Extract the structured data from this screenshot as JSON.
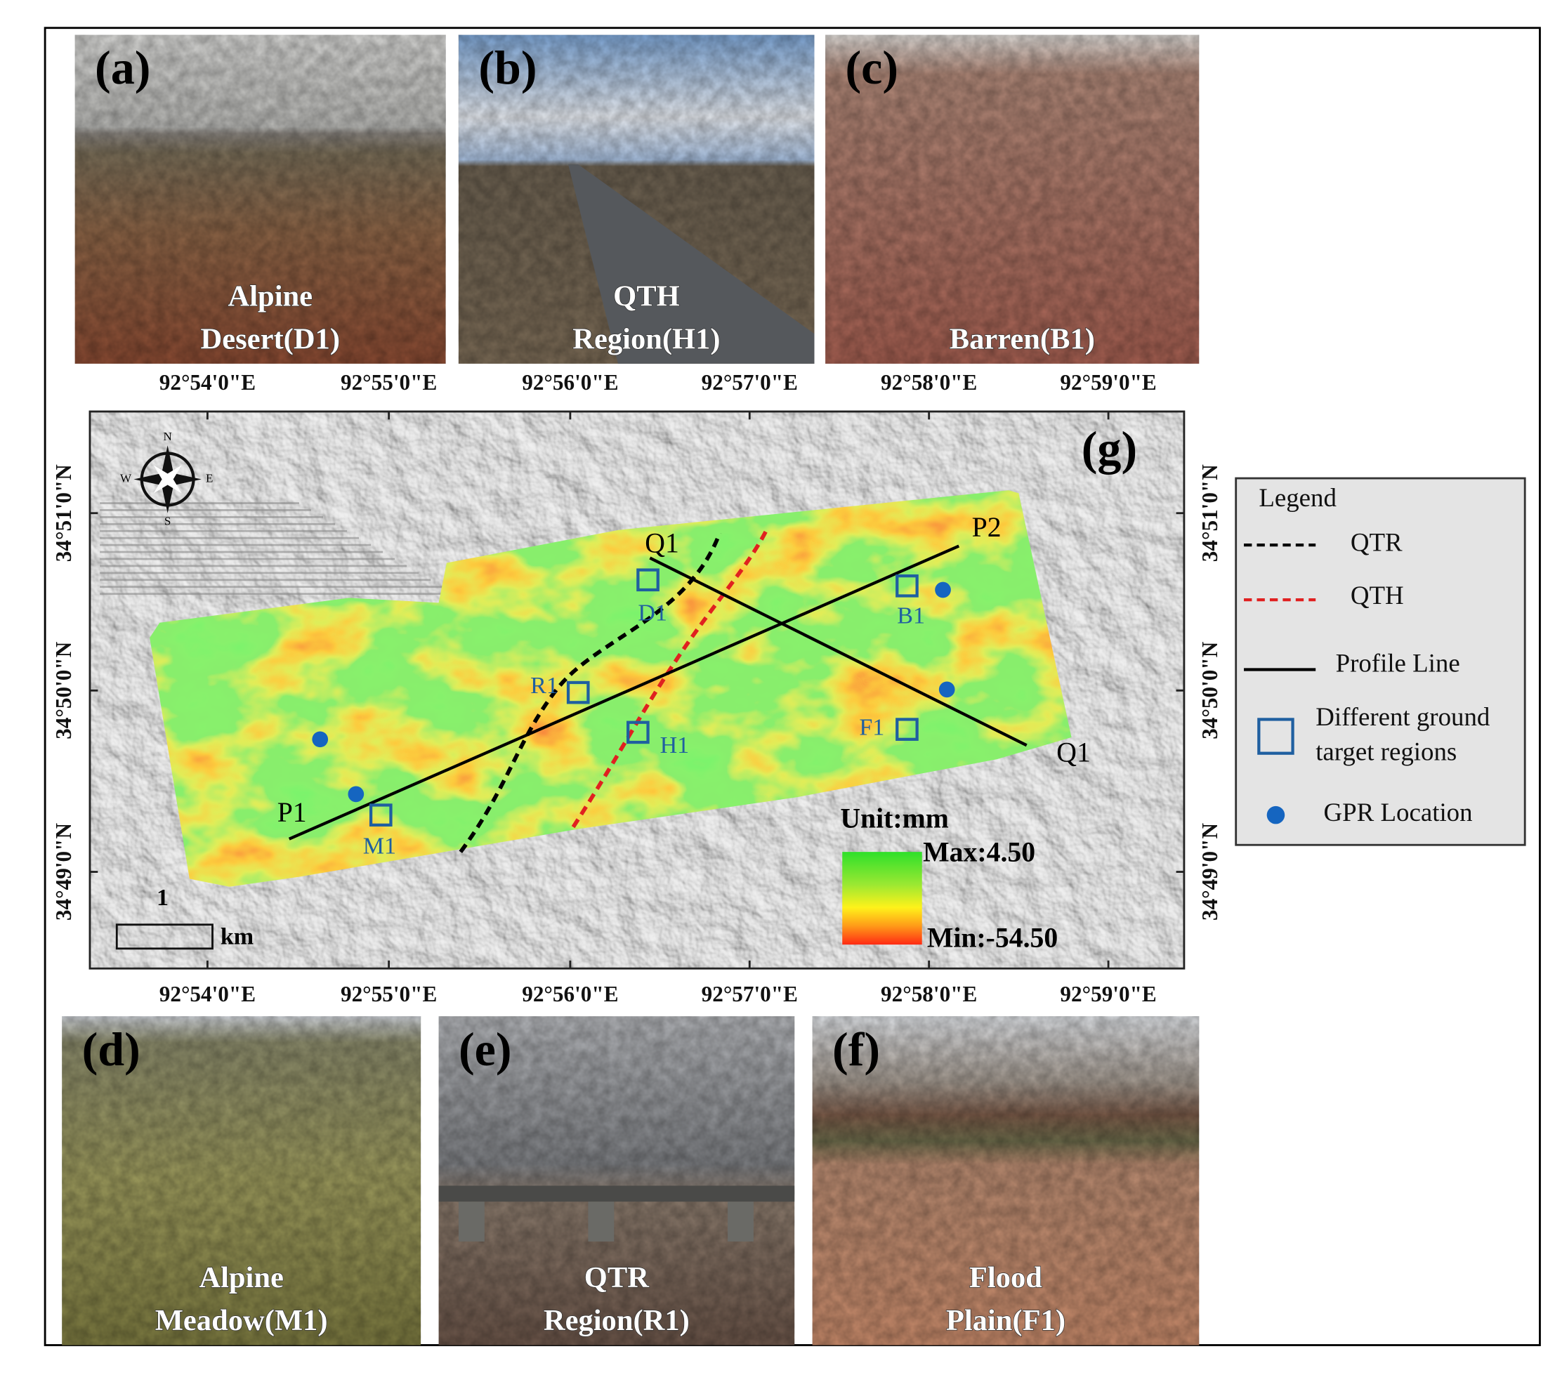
{
  "panels": [
    {
      "label": "(a)",
      "caption": [
        "Alpine",
        "Desert(D1)"
      ]
    },
    {
      "label": "(b)",
      "caption": [
        "QTH",
        "Region(H1)"
      ]
    },
    {
      "label": "(c)",
      "caption": [
        "Barren(B1)"
      ]
    },
    {
      "label": "(d)",
      "caption": [
        "Alpine",
        "Meadow(M1)"
      ]
    },
    {
      "label": "(e)",
      "caption": [
        "QTR",
        "Region(R1)"
      ]
    },
    {
      "label": "(f)",
      "caption": [
        "Flood",
        "Plain(F1)"
      ]
    }
  ],
  "map": {
    "label": "(g)",
    "compass": [
      "N",
      "S",
      "W",
      "E"
    ],
    "longitude_labels": [
      "92°54'0\"E",
      "92°55'0\"E",
      "92°56'0\"E",
      "92°57'0\"E",
      "92°58'0\"E",
      "92°59'0\"E"
    ],
    "latitude_labels": [
      "34°51'0\"N",
      "34°50'0\"N",
      "34°49'0\"N"
    ],
    "profiles": [
      "P1",
      "P2",
      "Q1",
      "Q1"
    ],
    "sites": [
      "D1",
      "B1",
      "R1",
      "H1",
      "F1",
      "M1"
    ],
    "colorbar": {
      "title": "Unit:mm",
      "max": "Max:4.50",
      "min": "Min:-54.50"
    },
    "scale_bar": {
      "value": "1",
      "unit": "km"
    }
  },
  "legend": {
    "title": "Legend",
    "items": [
      [
        "QTR"
      ],
      [
        "QTH"
      ],
      [
        "Profile Line"
      ],
      [
        "Different ground",
        "target regions"
      ],
      [
        "GPR Location"
      ]
    ]
  }
}
